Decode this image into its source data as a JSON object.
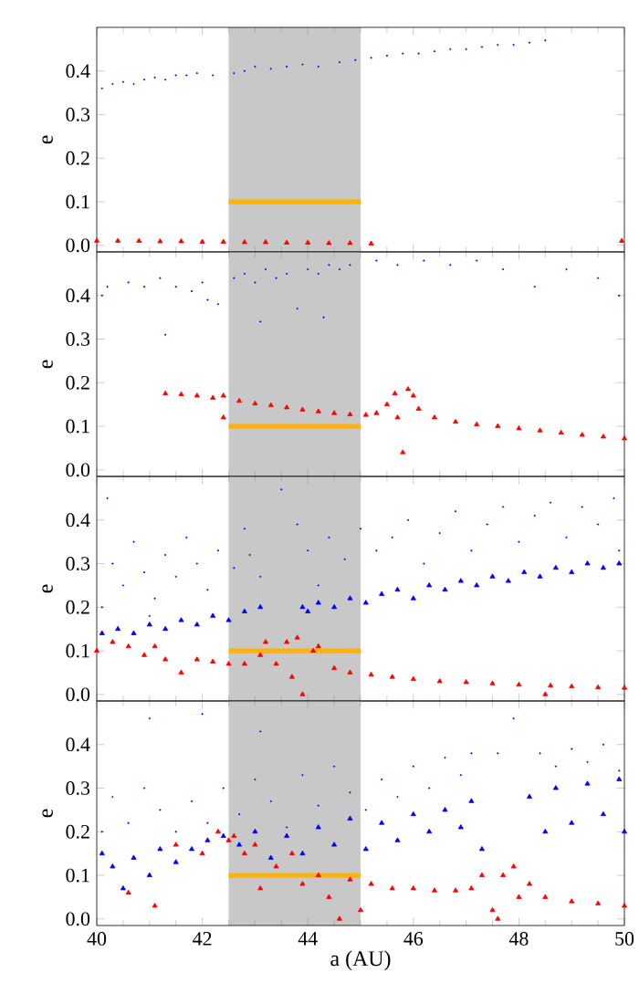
{
  "chart_data": [
    {
      "type": "scatter",
      "ylabel": "e",
      "xlim": [
        40,
        50
      ],
      "xticks": [
        40,
        42,
        44,
        46,
        48,
        50
      ],
      "ylim": [
        -0.015,
        0.5
      ],
      "yticks": [
        {
          "value": 0,
          "label": "0.0"
        },
        {
          "value": 0.1,
          "label": "0.1"
        },
        {
          "value": 0.2,
          "label": "0.2"
        },
        {
          "value": 0.3,
          "label": "0.3"
        },
        {
          "value": 0.4,
          "label": "0.4"
        }
      ],
      "tick_labels": "y",
      "bands": [
        {
          "axis": "x",
          "from": 42.5,
          "to": 45,
          "color": "#c8c8c8"
        }
      ],
      "series": [
        {
          "marker": "circle",
          "color": "#0000ff",
          "x": [
            40.1,
            40.3,
            40.5,
            40.7,
            40.9,
            41.1,
            41.3,
            41.5,
            41.7,
            41.9,
            42.2,
            42.6,
            42.8,
            43.0,
            43.3,
            43.6,
            43.9,
            44.2,
            44.6,
            44.9,
            45.2,
            45.5,
            45.8,
            46.1,
            46.4,
            46.7,
            47.0,
            47.3,
            47.6,
            47.9,
            48.2,
            48.5
          ],
          "values": [
            0.36,
            0.37,
            0.375,
            0.37,
            0.38,
            0.385,
            0.38,
            0.39,
            0.39,
            0.395,
            0.39,
            0.395,
            0.4,
            0.41,
            0.405,
            0.41,
            0.415,
            0.41,
            0.42,
            0.425,
            0.43,
            0.435,
            0.44,
            0.44,
            0.445,
            0.45,
            0.45,
            0.455,
            0.46,
            0.46,
            0.465,
            0.47
          ]
        },
        {
          "type": "line",
          "color": "#ffb400",
          "x": [
            42.5,
            45
          ],
          "values": [
            0.1,
            0.1
          ]
        },
        {
          "marker": "triangle",
          "color": "#ff0000",
          "x": [
            40.0,
            40.4,
            40.8,
            41.2,
            41.6,
            42.0,
            42.4,
            42.8,
            43.2,
            43.6,
            44.0,
            44.4,
            44.8,
            45.2,
            49.95
          ],
          "values": [
            0.01,
            0.01,
            0.01,
            0.009,
            0.009,
            0.008,
            0.008,
            0.007,
            0.007,
            0.006,
            0.006,
            0.005,
            0.005,
            0.004,
            0.01
          ]
        }
      ]
    },
    {
      "type": "scatter",
      "ylabel": "e",
      "xlim": [
        40,
        50
      ],
      "xticks": [
        40,
        42,
        44,
        46,
        48,
        50
      ],
      "ylim": [
        -0.015,
        0.5
      ],
      "yticks": [
        {
          "value": 0,
          "label": "0.0"
        },
        {
          "value": 0.1,
          "label": "0.1"
        },
        {
          "value": 0.2,
          "label": "0.2"
        },
        {
          "value": 0.3,
          "label": "0.3"
        },
        {
          "value": 0.4,
          "label": "0.4"
        }
      ],
      "tick_labels": "y",
      "bands": [
        {
          "axis": "x",
          "from": 42.5,
          "to": 45,
          "color": "#c8c8c8"
        }
      ],
      "series": [
        {
          "marker": "circle",
          "color": "#0000ff",
          "x": [
            40.1,
            40.2,
            40.6,
            40.9,
            41.2,
            41.5,
            41.8,
            42.0,
            42.3,
            42.6,
            42.8,
            43.0,
            43.2,
            43.4,
            43.6,
            43.8,
            44.0,
            44.2,
            44.4,
            44.6,
            44.8,
            43.1,
            41.3,
            45.3,
            45.7,
            46.2,
            46.7,
            47.2,
            47.7,
            48.3,
            48.9,
            49.5,
            49.9,
            42.1,
            44.3
          ],
          "values": [
            0.4,
            0.42,
            0.43,
            0.42,
            0.44,
            0.42,
            0.41,
            0.43,
            0.38,
            0.44,
            0.45,
            0.43,
            0.46,
            0.44,
            0.45,
            0.37,
            0.46,
            0.45,
            0.47,
            0.46,
            0.47,
            0.34,
            0.31,
            0.48,
            0.47,
            0.48,
            0.47,
            0.48,
            0.46,
            0.42,
            0.46,
            0.44,
            0.4,
            0.39,
            0.35
          ]
        },
        {
          "type": "line",
          "color": "#ffb400",
          "x": [
            42.5,
            45
          ],
          "values": [
            0.1,
            0.1
          ]
        },
        {
          "marker": "triangle",
          "color": "#ff0000",
          "x": [
            41.3,
            41.6,
            41.9,
            42.2,
            42.4,
            42.4,
            42.7,
            43.0,
            43.3,
            43.6,
            43.9,
            44.2,
            44.5,
            44.8,
            45.1,
            45.3,
            45.5,
            45.65,
            45.7,
            45.8,
            45.9,
            46.0,
            46.1,
            46.4,
            46.8,
            47.2,
            47.6,
            48.0,
            48.4,
            48.8,
            49.2,
            49.6,
            50.0
          ],
          "values": [
            0.175,
            0.173,
            0.17,
            0.165,
            0.17,
            0.12,
            0.158,
            0.152,
            0.148,
            0.143,
            0.138,
            0.134,
            0.13,
            0.127,
            0.126,
            0.13,
            0.15,
            0.175,
            0.12,
            0.04,
            0.185,
            0.17,
            0.14,
            0.12,
            0.11,
            0.104,
            0.1,
            0.095,
            0.09,
            0.085,
            0.08,
            0.076,
            0.072
          ]
        }
      ]
    },
    {
      "type": "scatter",
      "ylabel": "e",
      "xlim": [
        40,
        50
      ],
      "xticks": [
        40,
        42,
        44,
        46,
        48,
        50
      ],
      "ylim": [
        -0.015,
        0.5
      ],
      "yticks": [
        {
          "value": 0,
          "label": "0.0"
        },
        {
          "value": 0.1,
          "label": "0.1"
        },
        {
          "value": 0.2,
          "label": "0.2"
        },
        {
          "value": 0.3,
          "label": "0.3"
        },
        {
          "value": 0.4,
          "label": "0.4"
        }
      ],
      "tick_labels": "y",
      "bands": [
        {
          "axis": "x",
          "from": 42.5,
          "to": 45,
          "color": "#c8c8c8"
        }
      ],
      "series": [
        {
          "marker": "circle",
          "color": "#0000ff",
          "x": [
            40.1,
            40.3,
            40.5,
            40.7,
            40.9,
            41.1,
            41.3,
            41.5,
            41.7,
            41.9,
            42.1,
            42.3,
            42.6,
            42.9,
            43.1,
            42.8,
            40.2,
            41.0,
            43.5,
            43.8,
            44.0,
            44.2,
            44.4,
            44.7,
            45.0,
            45.3,
            45.6,
            45.9,
            46.2,
            46.5,
            46.8,
            47.1,
            47.4,
            47.7,
            48.0,
            48.3,
            48.6,
            48.9,
            49.2,
            49.5,
            49.8,
            49.9
          ],
          "values": [
            0.2,
            0.3,
            0.25,
            0.35,
            0.28,
            0.22,
            0.32,
            0.27,
            0.36,
            0.3,
            0.24,
            0.33,
            0.29,
            0.32,
            0.27,
            0.38,
            0.45,
            0.18,
            0.47,
            0.39,
            0.33,
            0.25,
            0.36,
            0.31,
            0.38,
            0.33,
            0.36,
            0.4,
            0.3,
            0.37,
            0.42,
            0.33,
            0.39,
            0.43,
            0.35,
            0.41,
            0.44,
            0.36,
            0.43,
            0.39,
            0.45,
            0.33
          ]
        },
        {
          "marker": "triangle",
          "color": "#0000ff",
          "x": [
            40.1,
            40.4,
            40.7,
            41.0,
            41.3,
            41.6,
            41.9,
            42.2,
            42.5,
            42.8,
            43.1,
            43.9,
            44.0,
            44.2,
            44.5,
            44.8,
            45.1,
            45.4,
            45.7,
            46.0,
            46.3,
            46.6,
            46.9,
            47.2,
            47.5,
            47.8,
            48.1,
            48.4,
            48.7,
            49.0,
            49.3,
            49.6,
            49.9
          ],
          "values": [
            0.14,
            0.15,
            0.14,
            0.16,
            0.15,
            0.17,
            0.16,
            0.18,
            0.17,
            0.19,
            0.2,
            0.2,
            0.19,
            0.21,
            0.2,
            0.22,
            0.21,
            0.23,
            0.24,
            0.22,
            0.25,
            0.24,
            0.26,
            0.25,
            0.27,
            0.26,
            0.28,
            0.27,
            0.29,
            0.28,
            0.3,
            0.29,
            0.3
          ]
        },
        {
          "type": "line",
          "color": "#ffb400",
          "x": [
            42.5,
            45
          ],
          "values": [
            0.1,
            0.1
          ]
        },
        {
          "marker": "triangle",
          "color": "#ff0000",
          "x": [
            40.0,
            40.3,
            40.6,
            40.9,
            41.1,
            41.3,
            41.6,
            41.9,
            42.2,
            42.5,
            42.8,
            43.1,
            43.2,
            43.4,
            43.6,
            43.7,
            43.8,
            43.9,
            44.1,
            44.2,
            44.5,
            44.8,
            45.2,
            45.6,
            46.0,
            46.5,
            47.0,
            47.5,
            48.0,
            48.5,
            48.6,
            49.0,
            49.5,
            50.0
          ],
          "values": [
            0.1,
            0.12,
            0.11,
            0.09,
            0.11,
            0.08,
            0.05,
            0.08,
            0.075,
            0.07,
            0.07,
            0.09,
            0.12,
            0.07,
            0.12,
            0.04,
            0.13,
            0.0,
            0.1,
            0.11,
            0.06,
            0.05,
            0.045,
            0.04,
            0.035,
            0.03,
            0.028,
            0.025,
            0.022,
            0.0,
            0.02,
            0.018,
            0.016,
            0.015
          ]
        }
      ]
    },
    {
      "type": "scatter",
      "ylabel": "e",
      "xlabel": "a (AU)",
      "xlim": [
        40,
        50
      ],
      "xticks": [
        40,
        42,
        44,
        46,
        48,
        50
      ],
      "ylim": [
        -0.015,
        0.5
      ],
      "yticks": [
        {
          "value": 0,
          "label": "0.0"
        },
        {
          "value": 0.1,
          "label": "0.1"
        },
        {
          "value": 0.2,
          "label": "0.2"
        },
        {
          "value": 0.3,
          "label": "0.3"
        },
        {
          "value": 0.4,
          "label": "0.4"
        }
      ],
      "bands": [
        {
          "axis": "x",
          "from": 42.5,
          "to": 45,
          "color": "#c8c8c8"
        }
      ],
      "series": [
        {
          "marker": "circle",
          "color": "#0000ff",
          "x": [
            40.1,
            40.3,
            40.6,
            40.9,
            41.2,
            41.5,
            41.8,
            42.1,
            42.4,
            42.7,
            43.0,
            43.3,
            43.6,
            43.9,
            44.2,
            44.5,
            44.8,
            45.1,
            45.4,
            45.7,
            46.0,
            46.3,
            46.6,
            46.9,
            47.1,
            41.0,
            42.0,
            43.1,
            47.6,
            47.9,
            48.4,
            48.7,
            49.0,
            49.3,
            49.6,
            49.9
          ],
          "values": [
            0.2,
            0.28,
            0.22,
            0.3,
            0.25,
            0.2,
            0.27,
            0.22,
            0.3,
            0.24,
            0.32,
            0.27,
            0.21,
            0.33,
            0.26,
            0.35,
            0.29,
            0.25,
            0.32,
            0.28,
            0.35,
            0.3,
            0.37,
            0.33,
            0.38,
            0.46,
            0.47,
            0.43,
            0.38,
            0.46,
            0.38,
            0.35,
            0.39,
            0.36,
            0.4,
            0.34
          ]
        },
        {
          "marker": "triangle",
          "color": "#0000ff",
          "x": [
            40.1,
            40.3,
            40.5,
            40.7,
            41.0,
            41.2,
            41.5,
            41.8,
            42.1,
            42.4,
            42.7,
            43.0,
            43.3,
            43.6,
            43.9,
            44.2,
            44.5,
            44.8,
            45.1,
            45.4,
            45.7,
            46.0,
            46.3,
            46.6,
            46.9,
            47.1,
            47.3,
            48.2,
            48.5,
            48.7,
            49.0,
            49.3,
            49.6,
            49.9,
            50.0
          ],
          "values": [
            0.15,
            0.12,
            0.07,
            0.14,
            0.1,
            0.16,
            0.13,
            0.16,
            0.18,
            0.19,
            0.17,
            0.2,
            0.14,
            0.19,
            0.15,
            0.21,
            0.17,
            0.23,
            0.16,
            0.22,
            0.18,
            0.24,
            0.2,
            0.25,
            0.21,
            0.27,
            0.16,
            0.28,
            0.2,
            0.3,
            0.22,
            0.31,
            0.24,
            0.32,
            0.2
          ]
        },
        {
          "type": "line",
          "color": "#ffb400",
          "x": [
            42.5,
            45
          ],
          "values": [
            0.1,
            0.1
          ]
        },
        {
          "marker": "triangle",
          "color": "#ff0000",
          "x": [
            40.6,
            41.1,
            41.5,
            42.0,
            42.3,
            42.5,
            42.6,
            42.8,
            43.0,
            43.1,
            43.4,
            43.7,
            43.9,
            44.2,
            44.4,
            44.6,
            44.8,
            45.0,
            45.2,
            45.6,
            46.0,
            46.4,
            46.8,
            47.1,
            47.3,
            47.5,
            47.6,
            47.7,
            47.9,
            48.0,
            48.2,
            48.5,
            49.0,
            49.5,
            50.0
          ],
          "values": [
            0.06,
            0.03,
            0.17,
            0.15,
            0.2,
            0.18,
            0.19,
            0.15,
            0.17,
            0.07,
            0.12,
            0.15,
            0.08,
            0.1,
            0.05,
            0.0,
            0.09,
            0.02,
            0.08,
            0.07,
            0.07,
            0.065,
            0.065,
            0.07,
            0.1,
            0.02,
            0.0,
            0.1,
            0.12,
            0.05,
            0.08,
            0.05,
            0.04,
            0.035,
            0.03
          ]
        }
      ]
    }
  ]
}
